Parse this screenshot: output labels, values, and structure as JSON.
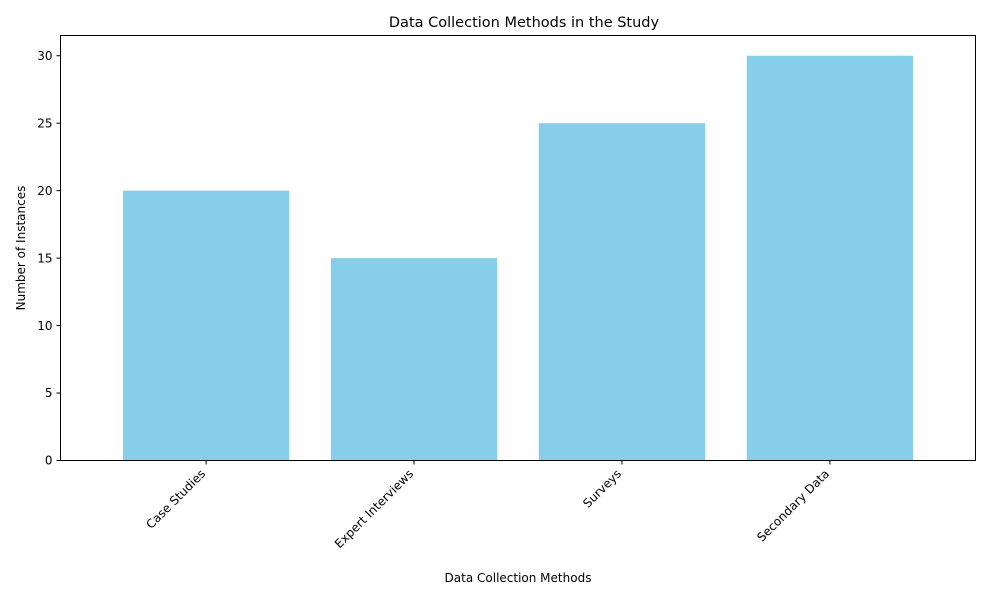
{
  "chart_data": {
    "type": "bar",
    "title": "Data Collection Methods in the Study",
    "xlabel": "Data Collection Methods",
    "ylabel": "Number of Instances",
    "categories": [
      "Case Studies",
      "Expert Interviews",
      "Surveys",
      "Secondary Data"
    ],
    "values": [
      20,
      15,
      25,
      30
    ],
    "ylim": [
      0,
      31.5
    ],
    "yticks": [
      0,
      5,
      10,
      15,
      20,
      25,
      30
    ],
    "bar_color": "#87CEEB",
    "grid": false,
    "legend": "none",
    "xtick_rotation": 45
  }
}
